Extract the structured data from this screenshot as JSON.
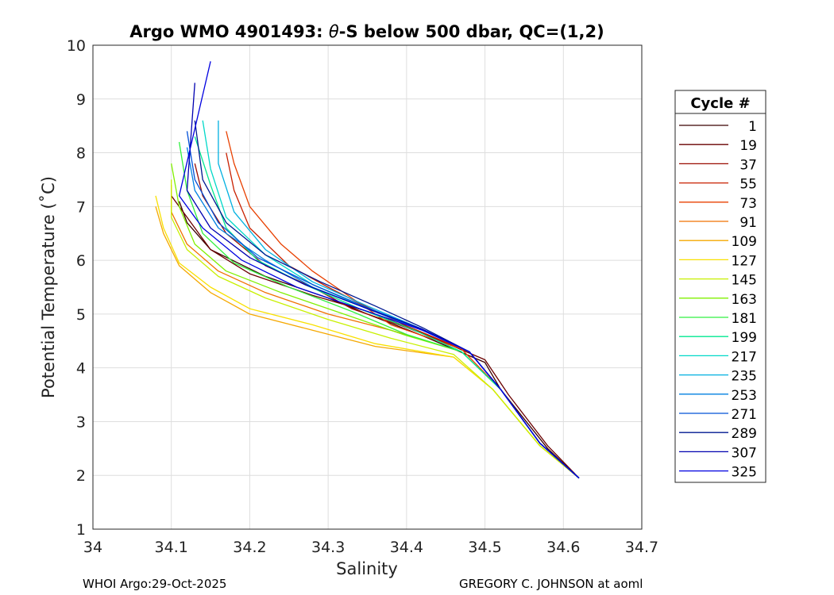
{
  "chart_data": {
    "type": "line",
    "title_prefix": "Argo WMO 4901493: ",
    "title_theta": "θ",
    "title_suffix": "-S below 500 dbar,  QC=(1,2)",
    "xlabel": "Salinity",
    "ylabel": "Potential Temperature (˚C)",
    "xlim": [
      34.0,
      34.7
    ],
    "ylim": [
      1,
      10
    ],
    "xticks": [
      "34",
      "34.1",
      "34.2",
      "34.3",
      "34.4",
      "34.5",
      "34.6",
      "34.7"
    ],
    "yticks": [
      "1",
      "2",
      "3",
      "4",
      "5",
      "6",
      "7",
      "8",
      "9",
      "10"
    ],
    "grid": true,
    "legend": {
      "title": "Cycle #",
      "position": "outside-right",
      "entries": [
        {
          "label": "1",
          "color": "#3a0000"
        },
        {
          "label": "19",
          "color": "#6a0000"
        },
        {
          "label": "37",
          "color": "#9a0a00"
        },
        {
          "label": "55",
          "color": "#c82000"
        },
        {
          "label": "73",
          "color": "#e84000"
        },
        {
          "label": "91",
          "color": "#f07000"
        },
        {
          "label": "109",
          "color": "#f5a800"
        },
        {
          "label": "127",
          "color": "#f8e000"
        },
        {
          "label": "145",
          "color": "#c8f000"
        },
        {
          "label": "163",
          "color": "#80f000"
        },
        {
          "label": "181",
          "color": "#30f040"
        },
        {
          "label": "199",
          "color": "#00e890"
        },
        {
          "label": "217",
          "color": "#00d8c8"
        },
        {
          "label": "235",
          "color": "#00b0e0"
        },
        {
          "label": "253",
          "color": "#0080e0"
        },
        {
          "label": "271",
          "color": "#0050d8"
        },
        {
          "label": "289",
          "color": "#001890"
        },
        {
          "label": "307",
          "color": "#0000b0"
        },
        {
          "label": "325",
          "color": "#0000e0"
        }
      ]
    },
    "series": [
      {
        "name": "1",
        "color": "#3a0000",
        "points": [
          [
            34.62,
            1.95
          ],
          [
            34.58,
            2.5
          ],
          [
            34.52,
            3.6
          ],
          [
            34.5,
            4.1
          ],
          [
            34.42,
            4.6
          ],
          [
            34.35,
            5.0
          ],
          [
            34.3,
            5.3
          ],
          [
            34.22,
            5.7
          ],
          [
            34.15,
            6.2
          ],
          [
            34.12,
            6.7
          ],
          [
            34.11,
            7.1
          ]
        ]
      },
      {
        "name": "19",
        "color": "#6a0000",
        "points": [
          [
            34.62,
            1.95
          ],
          [
            34.58,
            2.55
          ],
          [
            34.53,
            3.5
          ],
          [
            34.5,
            4.15
          ],
          [
            34.42,
            4.65
          ],
          [
            34.35,
            5.05
          ],
          [
            34.28,
            5.35
          ],
          [
            34.2,
            5.75
          ],
          [
            34.15,
            6.2
          ],
          [
            34.12,
            6.8
          ],
          [
            34.1,
            7.2
          ]
        ]
      },
      {
        "name": "37",
        "color": "#9a0a00",
        "points": [
          [
            34.62,
            1.95
          ],
          [
            34.57,
            2.6
          ],
          [
            34.52,
            3.6
          ],
          [
            34.48,
            4.3
          ],
          [
            34.4,
            4.75
          ],
          [
            34.33,
            5.1
          ],
          [
            34.28,
            5.5
          ],
          [
            34.22,
            5.9
          ],
          [
            34.17,
            6.5
          ],
          [
            34.14,
            7.2
          ],
          [
            34.13,
            7.8
          ]
        ]
      },
      {
        "name": "55",
        "color": "#c82000",
        "points": [
          [
            34.62,
            1.95
          ],
          [
            34.57,
            2.6
          ],
          [
            34.52,
            3.6
          ],
          [
            34.48,
            4.3
          ],
          [
            34.4,
            4.78
          ],
          [
            34.34,
            5.2
          ],
          [
            34.3,
            5.5
          ],
          [
            34.25,
            5.9
          ],
          [
            34.2,
            6.6
          ],
          [
            34.18,
            7.3
          ],
          [
            34.17,
            8.0
          ]
        ]
      },
      {
        "name": "73",
        "color": "#e84000",
        "points": [
          [
            34.62,
            1.95
          ],
          [
            34.57,
            2.6
          ],
          [
            34.52,
            3.6
          ],
          [
            34.47,
            4.35
          ],
          [
            34.38,
            4.8
          ],
          [
            34.33,
            5.3
          ],
          [
            34.28,
            5.8
          ],
          [
            34.24,
            6.3
          ],
          [
            34.2,
            7.0
          ],
          [
            34.18,
            7.8
          ],
          [
            34.17,
            8.4
          ]
        ]
      },
      {
        "name": "91",
        "color": "#f07000",
        "points": [
          [
            34.62,
            1.95
          ],
          [
            34.57,
            2.6
          ],
          [
            34.52,
            3.6
          ],
          [
            34.47,
            4.3
          ],
          [
            34.38,
            4.7
          ],
          [
            34.3,
            5.0
          ],
          [
            34.22,
            5.4
          ],
          [
            34.16,
            5.8
          ],
          [
            34.12,
            6.3
          ],
          [
            34.1,
            6.9
          ],
          [
            34.1,
            7.4
          ]
        ]
      },
      {
        "name": "109",
        "color": "#f5a800",
        "points": [
          [
            34.62,
            1.95
          ],
          [
            34.57,
            2.55
          ],
          [
            34.51,
            3.6
          ],
          [
            34.46,
            4.2
          ],
          [
            34.36,
            4.4
          ],
          [
            34.28,
            4.7
          ],
          [
            34.2,
            5.0
          ],
          [
            34.15,
            5.4
          ],
          [
            34.11,
            5.9
          ],
          [
            34.09,
            6.5
          ],
          [
            34.08,
            7.0
          ]
        ]
      },
      {
        "name": "127",
        "color": "#f8e000",
        "points": [
          [
            34.62,
            1.95
          ],
          [
            34.57,
            2.55
          ],
          [
            34.51,
            3.6
          ],
          [
            34.46,
            4.2
          ],
          [
            34.36,
            4.45
          ],
          [
            34.28,
            4.8
          ],
          [
            34.2,
            5.1
          ],
          [
            34.15,
            5.5
          ],
          [
            34.11,
            5.95
          ],
          [
            34.09,
            6.6
          ],
          [
            34.08,
            7.2
          ]
        ]
      },
      {
        "name": "145",
        "color": "#c8f000",
        "points": [
          [
            34.62,
            1.95
          ],
          [
            34.57,
            2.55
          ],
          [
            34.51,
            3.6
          ],
          [
            34.46,
            4.25
          ],
          [
            34.38,
            4.55
          ],
          [
            34.3,
            4.9
          ],
          [
            34.22,
            5.3
          ],
          [
            34.16,
            5.7
          ],
          [
            34.12,
            6.2
          ],
          [
            34.1,
            6.8
          ],
          [
            34.1,
            7.5
          ]
        ]
      },
      {
        "name": "163",
        "color": "#80f000",
        "points": [
          [
            34.62,
            1.95
          ],
          [
            34.57,
            2.6
          ],
          [
            34.52,
            3.6
          ],
          [
            34.47,
            4.3
          ],
          [
            34.4,
            4.6
          ],
          [
            34.32,
            5.0
          ],
          [
            34.24,
            5.4
          ],
          [
            34.17,
            5.8
          ],
          [
            34.13,
            6.3
          ],
          [
            34.11,
            7.0
          ],
          [
            34.1,
            7.8
          ]
        ]
      },
      {
        "name": "181",
        "color": "#30f040",
        "points": [
          [
            34.62,
            1.95
          ],
          [
            34.57,
            2.6
          ],
          [
            34.52,
            3.6
          ],
          [
            34.47,
            4.3
          ],
          [
            34.4,
            4.62
          ],
          [
            34.33,
            5.05
          ],
          [
            34.25,
            5.5
          ],
          [
            34.18,
            5.95
          ],
          [
            34.14,
            6.5
          ],
          [
            34.12,
            7.3
          ],
          [
            34.11,
            8.2
          ]
        ]
      },
      {
        "name": "199",
        "color": "#00e890",
        "points": [
          [
            34.62,
            1.95
          ],
          [
            34.57,
            2.6
          ],
          [
            34.52,
            3.6
          ],
          [
            34.47,
            4.3
          ],
          [
            34.41,
            4.7
          ],
          [
            34.34,
            5.1
          ],
          [
            34.27,
            5.55
          ],
          [
            34.21,
            6.0
          ],
          [
            34.17,
            6.6
          ],
          [
            34.15,
            7.4
          ],
          [
            34.13,
            8.3
          ]
        ]
      },
      {
        "name": "217",
        "color": "#00d8c8",
        "points": [
          [
            34.62,
            1.95
          ],
          [
            34.57,
            2.6
          ],
          [
            34.52,
            3.6
          ],
          [
            34.48,
            4.3
          ],
          [
            34.42,
            4.7
          ],
          [
            34.35,
            5.1
          ],
          [
            34.28,
            5.55
          ],
          [
            34.22,
            6.1
          ],
          [
            34.17,
            6.8
          ],
          [
            34.15,
            7.7
          ],
          [
            34.14,
            8.6
          ]
        ]
      },
      {
        "name": "235",
        "color": "#00b0e0",
        "points": [
          [
            34.62,
            1.95
          ],
          [
            34.57,
            2.6
          ],
          [
            34.52,
            3.6
          ],
          [
            34.48,
            4.3
          ],
          [
            34.42,
            4.72
          ],
          [
            34.35,
            5.15
          ],
          [
            34.28,
            5.6
          ],
          [
            34.22,
            6.2
          ],
          [
            34.18,
            6.9
          ],
          [
            34.16,
            7.8
          ],
          [
            34.16,
            8.6
          ]
        ]
      },
      {
        "name": "253",
        "color": "#0080e0",
        "points": [
          [
            34.62,
            1.95
          ],
          [
            34.57,
            2.6
          ],
          [
            34.52,
            3.6
          ],
          [
            34.48,
            4.3
          ],
          [
            34.42,
            4.7
          ],
          [
            34.35,
            5.1
          ],
          [
            34.28,
            5.5
          ],
          [
            34.22,
            6.0
          ],
          [
            34.16,
            6.6
          ],
          [
            34.13,
            7.3
          ],
          [
            34.12,
            8.1
          ]
        ]
      },
      {
        "name": "271",
        "color": "#0050d8",
        "points": [
          [
            34.62,
            1.95
          ],
          [
            34.57,
            2.6
          ],
          [
            34.52,
            3.6
          ],
          [
            34.48,
            4.3
          ],
          [
            34.42,
            4.72
          ],
          [
            34.35,
            5.12
          ],
          [
            34.28,
            5.55
          ],
          [
            34.21,
            6.05
          ],
          [
            34.16,
            6.7
          ],
          [
            34.13,
            7.5
          ],
          [
            34.12,
            8.4
          ]
        ]
      },
      {
        "name": "289",
        "color": "#001890",
        "points": [
          [
            34.62,
            1.95
          ],
          [
            34.57,
            2.6
          ],
          [
            34.52,
            3.6
          ],
          [
            34.48,
            4.3
          ],
          [
            34.42,
            4.75
          ],
          [
            34.36,
            5.15
          ],
          [
            34.29,
            5.6
          ],
          [
            34.22,
            6.1
          ],
          [
            34.17,
            6.7
          ],
          [
            34.14,
            7.5
          ],
          [
            34.13,
            8.6
          ]
        ]
      },
      {
        "name": "307",
        "color": "#0000b0",
        "points": [
          [
            34.62,
            1.95
          ],
          [
            34.57,
            2.6
          ],
          [
            34.52,
            3.6
          ],
          [
            34.48,
            4.3
          ],
          [
            34.42,
            4.72
          ],
          [
            34.35,
            5.1
          ],
          [
            34.27,
            5.55
          ],
          [
            34.2,
            6.05
          ],
          [
            34.15,
            6.6
          ],
          [
            34.12,
            7.3
          ],
          [
            34.13,
            9.3
          ]
        ]
      },
      {
        "name": "325",
        "color": "#0000e0",
        "points": [
          [
            34.62,
            1.95
          ],
          [
            34.57,
            2.6
          ],
          [
            34.52,
            3.6
          ],
          [
            34.48,
            4.3
          ],
          [
            34.42,
            4.7
          ],
          [
            34.34,
            5.1
          ],
          [
            34.26,
            5.5
          ],
          [
            34.19,
            6.0
          ],
          [
            34.14,
            6.6
          ],
          [
            34.11,
            7.2
          ],
          [
            34.15,
            9.7
          ]
        ]
      }
    ]
  },
  "footer": {
    "left": "WHOI Argo:29-Oct-2025",
    "right": "GREGORY C. JOHNSON at aoml"
  }
}
